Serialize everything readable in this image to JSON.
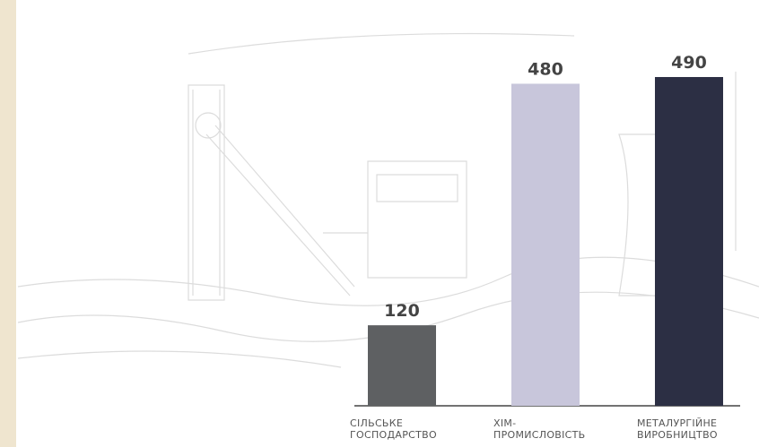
{
  "chart_data": {
    "type": "bar",
    "categories": [
      "СІЛЬСЬКЕ ГОСПОДАРСТВО",
      "ХІМ-ПРОМИСЛОВІСТЬ",
      "МЕТАЛУРГІЙНЕ ВИРОБНИЦТВО"
    ],
    "values": [
      120,
      480,
      490
    ],
    "colors": [
      "#5e6062",
      "#c8c6db",
      "#2c2f44"
    ]
  }
}
